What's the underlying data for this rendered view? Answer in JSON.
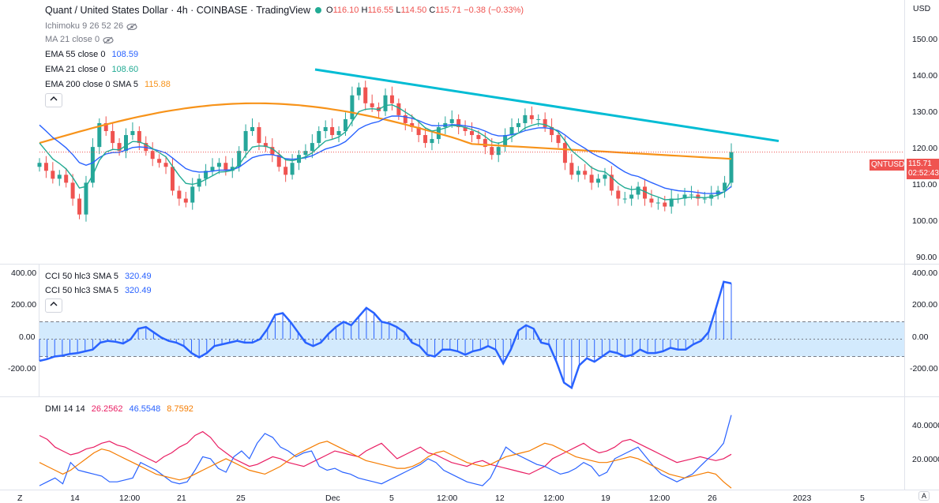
{
  "header": {
    "title": "Quant / United States Dollar · 4h · COINBASE · TradingView",
    "o_label": "O",
    "o": "116.10",
    "h_label": "H",
    "h": "116.55",
    "l_label": "L",
    "l": "114.50",
    "c_label": "C",
    "c": "115.71",
    "change": "−0.38 (−0.33%)"
  },
  "indicators": {
    "ichimoku": {
      "label": "Ichimoku 9 26 52 26"
    },
    "ma21": {
      "label": "MA 21 close 0"
    },
    "ema55": {
      "label": "EMA 55 close 0",
      "value": "108.59",
      "color": "#2962ff"
    },
    "ema21": {
      "label": "EMA 21 close 0",
      "value": "108.60",
      "color": "#22ab94"
    },
    "ema200": {
      "label": "EMA 200 close 0 SMA 5",
      "value": "115.88",
      "color": "#f7931a"
    }
  },
  "cci_panel": {
    "legend1": {
      "label": "CCI 50 hlc3 SMA 5",
      "value": "320.49"
    },
    "legend2": {
      "label": "CCI 50 hlc3 SMA 5",
      "value": "320.49"
    },
    "axis": [
      "400.00",
      "200.00",
      "0.00",
      "-200.00"
    ],
    "right_axis": [
      "400.00",
      "200.00",
      "0.00",
      "-200.00"
    ]
  },
  "dmi_panel": {
    "label": "DMI 14 14",
    "v1": "26.2562",
    "v1_color": "#e91e63",
    "v2": "46.5548",
    "v2_color": "#2962ff",
    "v3": "8.7592",
    "v3_color": "#f57c00",
    "axis": [
      "40.0000",
      "20.0000"
    ]
  },
  "price_axis": {
    "currency": "USD",
    "ticks": [
      "150.00",
      "140.00",
      "130.00",
      "120.00",
      "110.00",
      "100.00",
      "90.00"
    ],
    "symbol_tag": "QNTUSD",
    "last_price": "115.71",
    "countdown": "02:52:43"
  },
  "time_axis": {
    "labels": [
      "14",
      "12:00",
      "21",
      "25",
      "Dec",
      "5",
      "12:00",
      "12",
      "12:00",
      "19",
      "12:00",
      "26",
      "2023",
      "5",
      "A"
    ],
    "corner_left": "Z"
  },
  "chart_data": {
    "type": "candlestick",
    "title": "Quant / United States Dollar · 4h · COINBASE",
    "ylabel": "USD",
    "ylim": [
      88,
      154
    ],
    "x_ticks": [
      "14",
      "12:00",
      "21",
      "25",
      "Dec",
      "5",
      "12:00",
      "12",
      "12:00",
      "19",
      "12:00",
      "26",
      "2023",
      "5"
    ],
    "close_series": [
      113,
      111,
      109,
      110,
      108,
      104,
      100,
      108,
      117,
      123,
      121,
      118,
      116,
      120,
      121,
      118,
      116,
      114,
      113,
      112,
      106,
      104,
      103,
      107,
      109,
      111,
      112,
      113,
      111,
      112,
      116,
      121,
      122,
      118,
      117,
      115,
      112,
      110,
      113,
      115,
      116,
      118,
      121,
      122,
      120,
      121,
      124,
      130,
      132,
      128,
      127,
      126,
      130,
      128,
      125,
      123,
      122,
      120,
      118,
      119,
      122,
      123,
      124,
      122,
      121,
      120,
      119,
      117,
      115,
      117,
      120,
      122,
      123,
      125,
      124,
      124,
      122,
      120,
      118,
      113,
      110,
      111,
      110,
      108,
      109,
      110,
      106,
      104,
      104,
      105,
      107,
      104,
      103,
      103,
      102,
      104,
      104,
      105,
      105,
      104,
      104,
      105,
      106,
      108,
      115.71
    ],
    "series": [
      {
        "name": "EMA 200",
        "last": 115.88
      },
      {
        "name": "EMA 55",
        "last": 108.59
      },
      {
        "name": "EMA 21",
        "last": 108.6
      }
    ],
    "cci_ylim": [
      -320,
      420
    ],
    "cci": [
      -125,
      -115,
      -100,
      -95,
      -85,
      -80,
      -70,
      -60,
      -20,
      -10,
      -15,
      -25,
      0,
      60,
      70,
      40,
      10,
      -10,
      -20,
      -40,
      -80,
      -105,
      -80,
      -40,
      -30,
      -20,
      -10,
      -20,
      -20,
      0,
      60,
      140,
      150,
      100,
      40,
      -20,
      -40,
      -20,
      30,
      70,
      100,
      80,
      130,
      180,
      150,
      100,
      90,
      70,
      40,
      -20,
      -40,
      -90,
      -100,
      -60,
      -60,
      -70,
      -90,
      -70,
      -60,
      -40,
      -60,
      -140,
      -60,
      50,
      80,
      60,
      -20,
      -30,
      -130,
      -250,
      -280,
      -150,
      -110,
      -130,
      -100,
      -70,
      -80,
      -100,
      -90,
      -60,
      -80,
      -80,
      -70,
      -50,
      -60,
      -60,
      -30,
      -10,
      40,
      180,
      330,
      320.49
    ],
    "cci_band": [
      -100,
      100
    ],
    "dmi_ylim": [
      8,
      55
    ],
    "dmi_plus": [
      10,
      12,
      14,
      11,
      22,
      18,
      17,
      16,
      15,
      12,
      12,
      13,
      14,
      22,
      20,
      18,
      15,
      12,
      11,
      12,
      18,
      25,
      24,
      19,
      17,
      25,
      28,
      24,
      32,
      37,
      35,
      30,
      28,
      25,
      27,
      28,
      20,
      18,
      19,
      17,
      16,
      14,
      13,
      12,
      11,
      13,
      15,
      17,
      19,
      21,
      24,
      22,
      18,
      16,
      14,
      12,
      11,
      10,
      14,
      22,
      30,
      27,
      25,
      23,
      21,
      20,
      18,
      16,
      17,
      19,
      22,
      20,
      15,
      17,
      24,
      26,
      28,
      30,
      25,
      20,
      16,
      14,
      12,
      14,
      16,
      20,
      24,
      27,
      32,
      46.5548
    ],
    "dmi_minus": [
      36,
      34,
      30,
      28,
      26,
      27,
      29,
      30,
      32,
      33,
      31,
      30,
      28,
      26,
      24,
      22,
      25,
      27,
      30,
      32,
      36,
      38,
      35,
      30,
      27,
      24,
      22,
      20,
      21,
      23,
      25,
      24,
      22,
      21,
      20,
      22,
      24,
      26,
      28,
      27,
      26,
      25,
      28,
      30,
      32,
      28,
      24,
      26,
      28,
      30,
      27,
      26,
      24,
      22,
      21,
      20,
      22,
      23,
      21,
      20,
      19,
      18,
      17,
      16,
      18,
      20,
      24,
      26,
      28,
      30,
      32,
      29,
      27,
      28,
      30,
      33,
      34,
      32,
      30,
      28,
      26,
      24,
      22,
      23,
      24,
      25,
      24,
      23,
      24,
      26.2562
    ],
    "adx": [
      22,
      20,
      18,
      16,
      18,
      21,
      24,
      27,
      29,
      28,
      26,
      24,
      22,
      20,
      18,
      16,
      15,
      14,
      13,
      14,
      16,
      18,
      20,
      22,
      24,
      22,
      20,
      18,
      17,
      16,
      18,
      20,
      23,
      26,
      28,
      30,
      32,
      33,
      31,
      29,
      27,
      25,
      23,
      22,
      21,
      20,
      19,
      19,
      20,
      22,
      25,
      27,
      28,
      26,
      24,
      22,
      21,
      20,
      21,
      23,
      25,
      26,
      27,
      28,
      30,
      32,
      31,
      29,
      27,
      25,
      24,
      23,
      22,
      22,
      23,
      24,
      25,
      24,
      22,
      20,
      18,
      16,
      15,
      14,
      15,
      16,
      17,
      16,
      12,
      8.7592
    ]
  }
}
